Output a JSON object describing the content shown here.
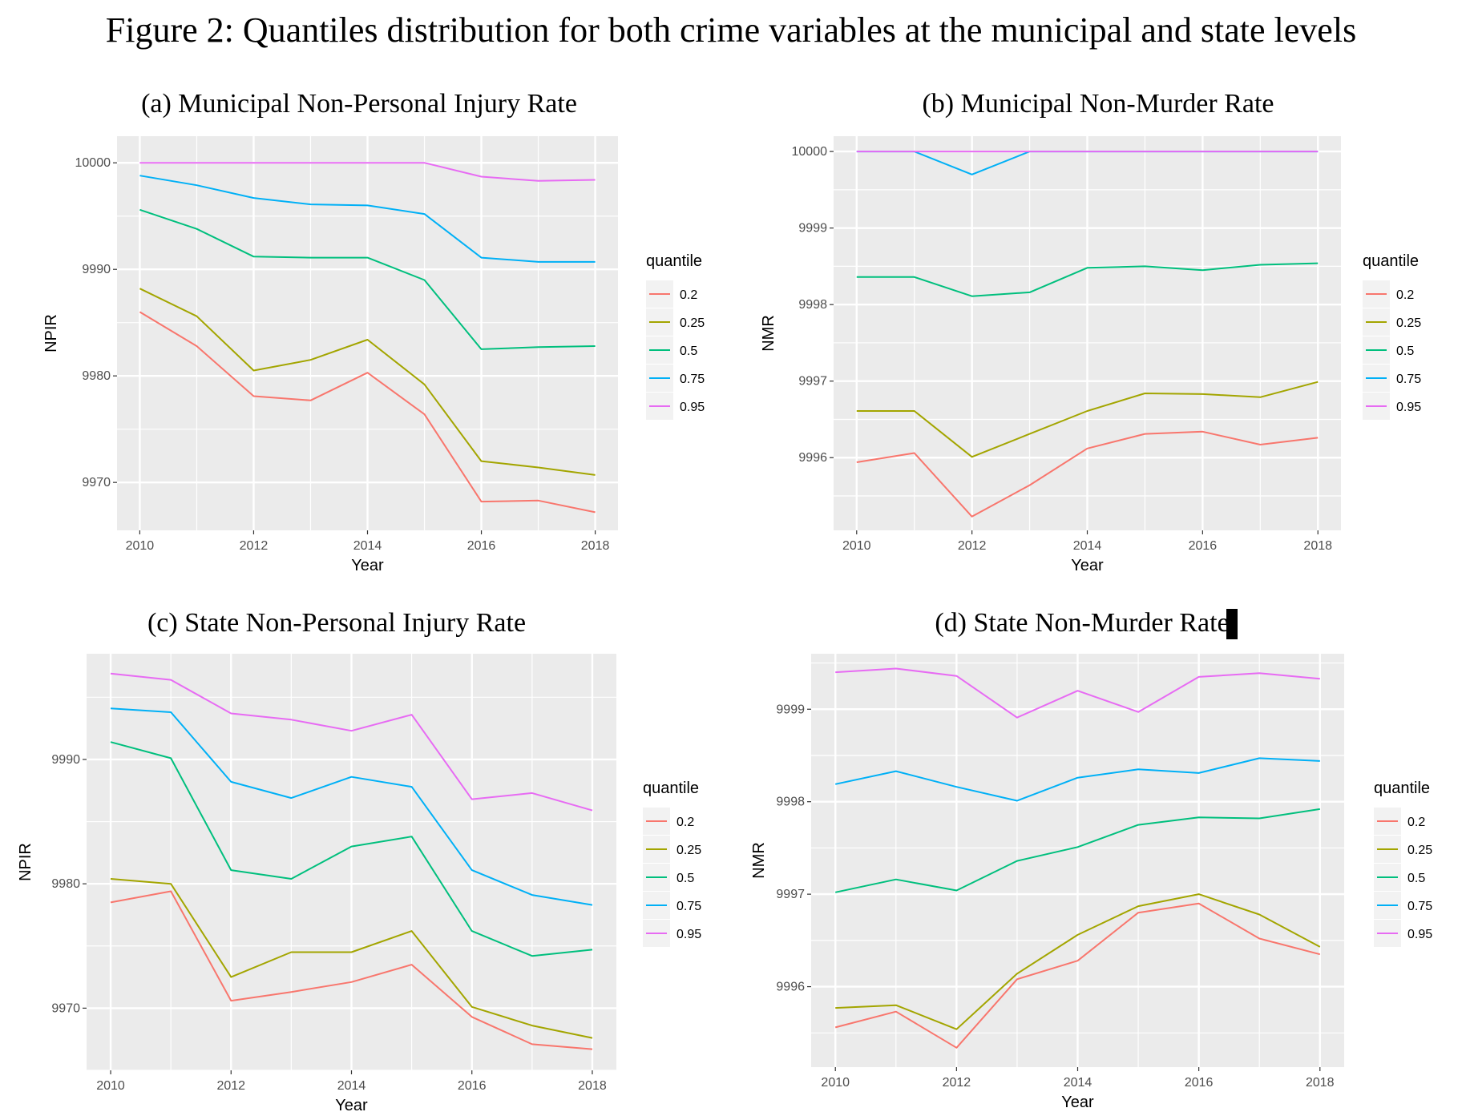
{
  "figure_title": "Figure 2: Quantiles distribution for both crime variables at the municipal and state levels",
  "colors": {
    "0.2": "#F8766D",
    "0.25": "#A3A500",
    "0.5": "#00BF7D",
    "0.75": "#00B0F6",
    "0.95": "#E76BF3",
    "panel_bg": "#EBEBEB",
    "grid": "#FFFFFF"
  },
  "chart_data": [
    {
      "type": "line",
      "title": "(a) Municipal Non-Personal Injury Rate",
      "xlabel": "Year",
      "ylabel": "NPIR",
      "x": [
        2010,
        2011,
        2012,
        2013,
        2014,
        2015,
        2016,
        2017,
        2018
      ],
      "xticks": [
        2010,
        2012,
        2014,
        2016,
        2018
      ],
      "yticks": [
        9970,
        9980,
        9990,
        10000
      ],
      "ylim": [
        9965.5,
        10002.5
      ],
      "grid": true,
      "legend_title": "quantile",
      "legend_position": "right",
      "series": [
        {
          "name": "0.2",
          "values": [
            9986.0,
            9982.8,
            9978.1,
            9977.7,
            9980.3,
            9976.4,
            9968.2,
            9968.3,
            9967.2
          ]
        },
        {
          "name": "0.25",
          "values": [
            9988.2,
            9985.6,
            9980.5,
            9981.5,
            9983.4,
            9979.2,
            9972.0,
            9971.4,
            9970.7
          ]
        },
        {
          "name": "0.5",
          "values": [
            9995.6,
            9993.8,
            9991.2,
            9991.1,
            9991.1,
            9989.0,
            9982.5,
            9982.7,
            9982.8
          ]
        },
        {
          "name": "0.75",
          "values": [
            9998.8,
            9997.9,
            9996.7,
            9996.1,
            9996.0,
            9995.2,
            9991.1,
            9990.7,
            9990.7
          ]
        },
        {
          "name": "0.95",
          "values": [
            10000.0,
            10000.0,
            10000.0,
            10000.0,
            10000.0,
            10000.0,
            9998.7,
            9998.3,
            9998.4
          ]
        }
      ]
    },
    {
      "type": "line",
      "title": "(b) Municipal Non-Murder Rate",
      "xlabel": "Year",
      "ylabel": "NMR",
      "x": [
        2010,
        2011,
        2012,
        2013,
        2014,
        2015,
        2016,
        2017,
        2018
      ],
      "xticks": [
        2010,
        2012,
        2014,
        2016,
        2018
      ],
      "yticks": [
        9996,
        9997,
        9998,
        9999,
        10000
      ],
      "ylim": [
        9995.05,
        10000.2
      ],
      "grid": true,
      "legend_title": "quantile",
      "legend_position": "right",
      "series": [
        {
          "name": "0.2",
          "values": [
            9995.94,
            9996.06,
            9995.23,
            9995.64,
            9996.12,
            9996.31,
            9996.34,
            9996.17,
            9996.26
          ]
        },
        {
          "name": "0.25",
          "values": [
            9996.61,
            9996.61,
            9996.01,
            9996.31,
            9996.61,
            9996.84,
            9996.83,
            9996.79,
            9996.99
          ]
        },
        {
          "name": "0.5",
          "values": [
            9998.36,
            9998.36,
            9998.11,
            9998.16,
            9998.48,
            9998.5,
            9998.45,
            9998.52,
            9998.54
          ]
        },
        {
          "name": "0.75",
          "values": [
            10000.0,
            10000.0,
            9999.7,
            10000.0,
            10000.0,
            10000.0,
            10000.0,
            10000.0,
            10000.0
          ]
        },
        {
          "name": "0.95",
          "values": [
            10000.0,
            10000.0,
            10000.0,
            10000.0,
            10000.0,
            10000.0,
            10000.0,
            10000.0,
            10000.0
          ]
        }
      ]
    },
    {
      "type": "line",
      "title": "(c) State Non-Personal Injury Rate",
      "xlabel": "Year",
      "ylabel": "NPIR",
      "x": [
        2010,
        2011,
        2012,
        2013,
        2014,
        2015,
        2016,
        2017,
        2018
      ],
      "xticks": [
        2010,
        2012,
        2014,
        2016,
        2018
      ],
      "yticks": [
        9970,
        9980,
        9990
      ],
      "ylim": [
        9965.0,
        9998.5
      ],
      "grid": true,
      "legend_title": "quantile",
      "legend_position": "right",
      "series": [
        {
          "name": "0.2",
          "values": [
            9978.5,
            9979.4,
            9970.6,
            9971.3,
            9972.1,
            9973.5,
            9969.3,
            9967.1,
            9966.7
          ]
        },
        {
          "name": "0.25",
          "values": [
            9980.4,
            9980.0,
            9972.5,
            9974.5,
            9974.5,
            9976.2,
            9970.1,
            9968.6,
            9967.6
          ]
        },
        {
          "name": "0.5",
          "values": [
            9991.4,
            9990.1,
            9981.1,
            9980.4,
            9983.0,
            9983.8,
            9976.2,
            9974.2,
            9974.7
          ]
        },
        {
          "name": "0.75",
          "values": [
            9994.1,
            9993.8,
            9988.2,
            9986.9,
            9988.6,
            9987.8,
            9981.1,
            9979.1,
            9978.3
          ]
        },
        {
          "name": "0.95",
          "values": [
            9996.9,
            9996.4,
            9993.7,
            9993.2,
            9992.3,
            9993.6,
            9986.8,
            9987.3,
            9985.9
          ]
        }
      ]
    },
    {
      "type": "line",
      "title": "(d)  State Non-Murder Rate",
      "xlabel": "Year",
      "ylabel": "NMR",
      "x": [
        2010,
        2011,
        2012,
        2013,
        2014,
        2015,
        2016,
        2017,
        2018
      ],
      "xticks": [
        2010,
        2012,
        2014,
        2016,
        2018
      ],
      "yticks": [
        9996,
        9997,
        9998,
        9999
      ],
      "ylim": [
        9995.13,
        9999.6
      ],
      "grid": true,
      "legend_title": "quantile",
      "legend_position": "right",
      "series": [
        {
          "name": "0.2",
          "values": [
            9995.56,
            9995.73,
            9995.34,
            9996.08,
            9996.28,
            9996.8,
            9996.9,
            9996.52,
            9996.35
          ]
        },
        {
          "name": "0.25",
          "values": [
            9995.77,
            9995.8,
            9995.54,
            9996.14,
            9996.56,
            9996.87,
            9997.0,
            9996.78,
            9996.43
          ]
        },
        {
          "name": "0.5",
          "values": [
            9997.02,
            9997.16,
            9997.04,
            9997.36,
            9997.51,
            9997.75,
            9997.83,
            9997.82,
            9997.92
          ]
        },
        {
          "name": "0.75",
          "values": [
            9998.19,
            9998.33,
            9998.16,
            9998.01,
            9998.26,
            9998.35,
            9998.31,
            9998.47,
            9998.44
          ]
        },
        {
          "name": "0.95",
          "values": [
            9999.4,
            9999.44,
            9999.36,
            9998.91,
            9999.2,
            9998.97,
            9999.35,
            9999.39,
            9999.33
          ]
        }
      ]
    }
  ]
}
